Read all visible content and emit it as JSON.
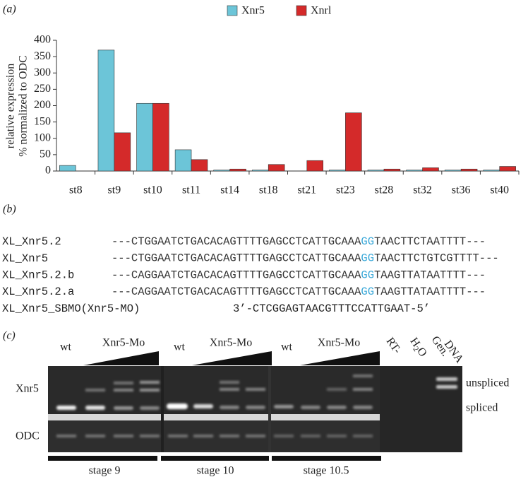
{
  "chart_data": {
    "type": "bar",
    "panel_label": "(a)",
    "categories": [
      "st8",
      "st9",
      "st10",
      "st11",
      "st14",
      "st18",
      "st21",
      "st23",
      "st28",
      "st32",
      "st36",
      "st40"
    ],
    "series": [
      {
        "name": "Xnr5",
        "color": "#6cc5d8",
        "values": [
          17,
          370,
          207,
          65,
          3,
          3,
          0,
          3,
          3,
          3,
          3,
          3
        ]
      },
      {
        "name": "Xnrl",
        "color": "#d42a2a",
        "values": [
          0,
          117,
          207,
          35,
          6,
          20,
          32,
          178,
          6,
          10,
          6,
          14
        ]
      }
    ],
    "ylim": [
      0,
      400
    ],
    "yticks": [
      0,
      50,
      100,
      150,
      200,
      250,
      300,
      350,
      400
    ],
    "ylabel": [
      "relative expression",
      "% normalized to ODC"
    ],
    "legend": "top"
  },
  "alignment": {
    "panel_label": "(b)",
    "rows": [
      {
        "name": "XL_Xnr5.2",
        "sequence": [
          "---CTGGAATCTGACACAGTTTTGAGCCTCATTGCAAA",
          "GG",
          "TAACTTCTAATTTT---"
        ]
      },
      {
        "name": "XL_Xnr5",
        "sequence": [
          "---CTGGAATCTGACACAGTTTTGAGCCTCATTGCAAA",
          "GG",
          "TAACTTCTGTCGTTTT---"
        ]
      },
      {
        "name": "XL_Xnr5.2.b",
        "sequence": [
          "---CAGGAATCTGACACAGTTTTGAGCCTCATTGCAAA",
          "GG",
          "TAAGTTATAATTTT---"
        ]
      },
      {
        "name": "XL_Xnr5.2.a",
        "sequence": [
          "---CAGGAATCTGACACAGTTTTGAGCCTCATTGCAAA",
          "GG",
          "TAAGTTATAATTTT---"
        ]
      }
    ],
    "morpholino": {
      "name": "XL_Xnr5_SBMO(Xnr5-MO)",
      "sequence": "3’-CTCGGAGTAACGTTTCCATTGAAT-5’"
    }
  },
  "gel": {
    "panel_label": "(c)",
    "groups": [
      {
        "control": "wt",
        "treatment": "Xnr5-Mo",
        "stage": "stage 9"
      },
      {
        "control": "wt",
        "treatment": "Xnr5-Mo",
        "stage": "stage 10"
      },
      {
        "control": "wt",
        "treatment": "Xnr5-Mo",
        "stage": "stage 10.5"
      }
    ],
    "rt": "RT-",
    "water": [
      "H",
      "2",
      "O"
    ],
    "genomic": [
      "Gen.",
      "DNA"
    ],
    "rows": [
      "Xnr5",
      "ODC"
    ],
    "bands": [
      "unspliced",
      "spliced"
    ]
  }
}
